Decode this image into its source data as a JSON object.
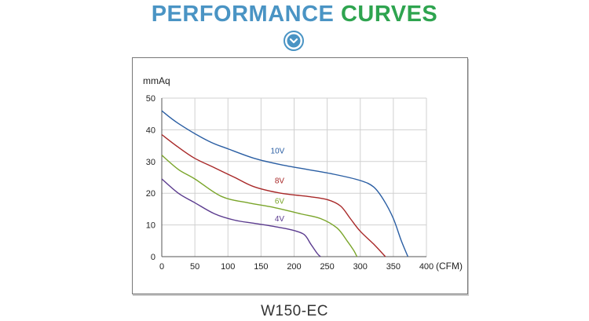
{
  "heading": {
    "word1": "PERFORMANCE",
    "word2": "CURVES"
  },
  "caption": "W150-EC",
  "colors": {
    "heading_blue": "#4a94c4",
    "heading_green": "#2ea44f",
    "badge": "#4a94c4",
    "grid": "#d0d0d0"
  },
  "badge_icon": "chevron-down-circle-icon",
  "chart_data": {
    "type": "line",
    "title": "",
    "xlabel": "(CFM)",
    "ylabel": "mmAq",
    "xlim": [
      0,
      400
    ],
    "ylim": [
      0,
      50
    ],
    "xticks": [
      0,
      50,
      100,
      150,
      200,
      250,
      300,
      350,
      400
    ],
    "yticks": [
      0,
      10,
      20,
      30,
      40,
      50
    ],
    "grid": true,
    "legend": "inline labels",
    "series": [
      {
        "name": "10V",
        "color": "#2a5ea3",
        "points": [
          [
            0,
            46
          ],
          [
            25,
            42
          ],
          [
            70,
            36.5
          ],
          [
            100,
            34
          ],
          [
            140,
            31
          ],
          [
            180,
            29
          ],
          [
            220,
            27.5
          ],
          [
            260,
            26
          ],
          [
            300,
            24
          ],
          [
            320,
            22
          ],
          [
            335,
            18
          ],
          [
            350,
            12
          ],
          [
            362,
            5
          ],
          [
            372,
            0
          ]
        ]
      },
      {
        "name": "8V",
        "color": "#a82828",
        "points": [
          [
            0,
            38.5
          ],
          [
            25,
            34.5
          ],
          [
            50,
            31
          ],
          [
            80,
            28
          ],
          [
            110,
            25
          ],
          [
            140,
            22
          ],
          [
            180,
            20
          ],
          [
            220,
            19
          ],
          [
            250,
            18
          ],
          [
            270,
            16
          ],
          [
            285,
            12
          ],
          [
            300,
            8
          ],
          [
            320,
            4
          ],
          [
            338,
            0
          ]
        ]
      },
      {
        "name": "6V",
        "color": "#7aa52a",
        "points": [
          [
            0,
            32
          ],
          [
            25,
            27.5
          ],
          [
            50,
            24.5
          ],
          [
            90,
            19
          ],
          [
            130,
            17
          ],
          [
            170,
            15.5
          ],
          [
            210,
            13.5
          ],
          [
            240,
            12
          ],
          [
            265,
            9
          ],
          [
            280,
            5
          ],
          [
            290,
            2
          ],
          [
            295,
            0
          ]
        ]
      },
      {
        "name": "4V",
        "color": "#5a3a8e",
        "points": [
          [
            0,
            24.5
          ],
          [
            25,
            20
          ],
          [
            50,
            17
          ],
          [
            80,
            13.5
          ],
          [
            110,
            11.5
          ],
          [
            140,
            10.5
          ],
          [
            170,
            9.5
          ],
          [
            195,
            8.5
          ],
          [
            215,
            7
          ],
          [
            225,
            4
          ],
          [
            235,
            1
          ],
          [
            240,
            0
          ]
        ]
      }
    ],
    "series_label_positions": [
      {
        "name": "10V",
        "x": 175,
        "y": 32.5
      },
      {
        "name": "8V",
        "x": 178,
        "y": 23.2
      },
      {
        "name": "6V",
        "x": 178,
        "y": 16.7
      },
      {
        "name": "4V",
        "x": 178,
        "y": 11.1
      }
    ]
  }
}
